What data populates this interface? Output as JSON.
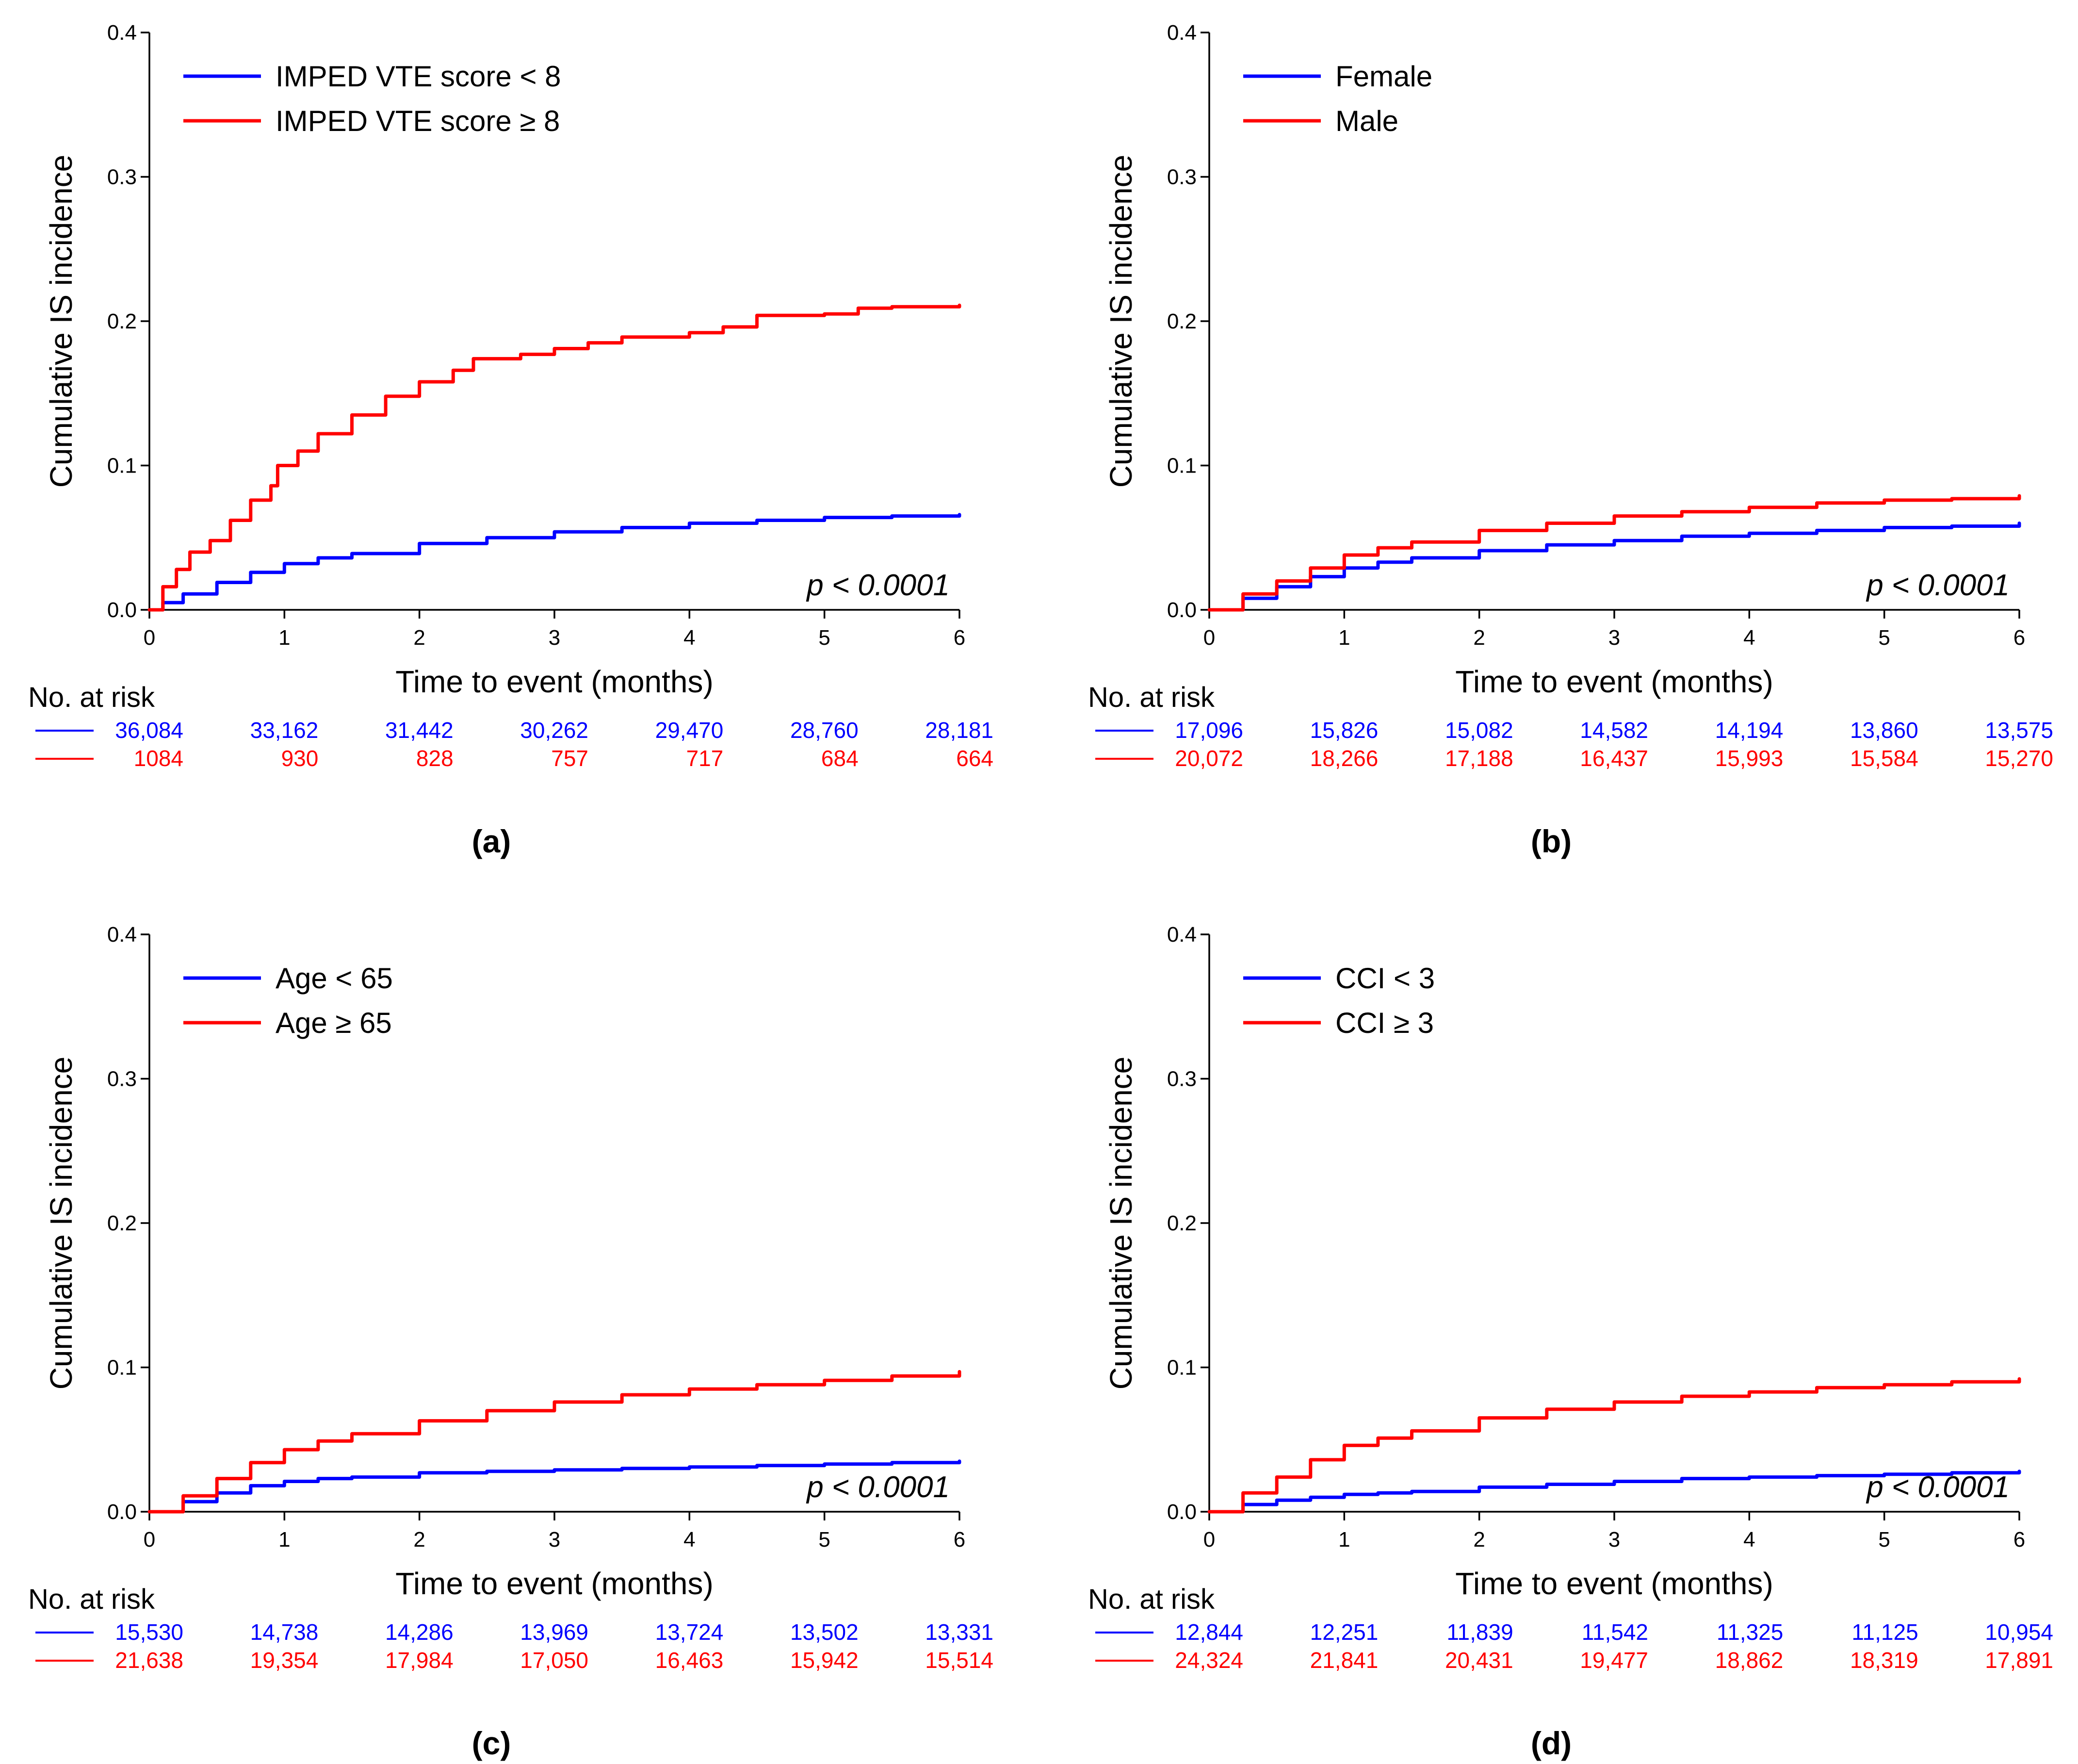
{
  "chart_data": [
    {
      "type": "line",
      "panel_label": "(a)",
      "xlabel": "Time to event (months)",
      "ylabel": "Cumulative IS incidence",
      "xlim": [
        0,
        6
      ],
      "ylim": [
        0,
        0.4
      ],
      "xticks": [
        "0",
        "1",
        "2",
        "3",
        "4",
        "5",
        "6"
      ],
      "yticks": [
        "0.0",
        "0.1",
        "0.2",
        "0.3",
        "0.4"
      ],
      "legend_position": "top-left",
      "annotation": "p < 0.0001",
      "risk_table_title": "No. at risk",
      "series": [
        {
          "name": "IMPED VTE score < 8",
          "color": "#0000ff",
          "x": [
            0,
            0.1,
            0.25,
            0.5,
            0.75,
            1,
            1.25,
            1.5,
            2,
            2.5,
            3,
            3.5,
            4,
            4.5,
            5,
            5.5,
            6
          ],
          "y": [
            0,
            0.005,
            0.011,
            0.019,
            0.026,
            0.032,
            0.036,
            0.039,
            0.046,
            0.05,
            0.054,
            0.057,
            0.06,
            0.062,
            0.064,
            0.065,
            0.066
          ],
          "at_risk": [
            "36,084",
            "33,162",
            "31,442",
            "30,262",
            "29,470",
            "28,760",
            "28,181"
          ]
        },
        {
          "name": "IMPED VTE score ≥ 8",
          "color": "#ff0000",
          "x": [
            0,
            0.1,
            0.2,
            0.3,
            0.45,
            0.6,
            0.75,
            0.9,
            0.95,
            1.1,
            1.25,
            1.5,
            1.75,
            2,
            2.25,
            2.4,
            2.75,
            3,
            3.25,
            3.5,
            4,
            4.25,
            4.5,
            4.75,
            5,
            5.25,
            5.5,
            6
          ],
          "y": [
            0,
            0.016,
            0.028,
            0.04,
            0.048,
            0.062,
            0.076,
            0.086,
            0.1,
            0.11,
            0.122,
            0.135,
            0.148,
            0.158,
            0.166,
            0.174,
            0.177,
            0.181,
            0.185,
            0.189,
            0.192,
            0.196,
            0.204,
            0.204,
            0.205,
            0.209,
            0.21,
            0.211
          ],
          "at_risk": [
            "1084",
            "930",
            "828",
            "757",
            "717",
            "684",
            "664"
          ]
        }
      ]
    },
    {
      "type": "line",
      "panel_label": "(b)",
      "xlabel": "Time to event (months)",
      "ylabel": "Cumulative IS incidence",
      "xlim": [
        0,
        6
      ],
      "ylim": [
        0,
        0.4
      ],
      "xticks": [
        "0",
        "1",
        "2",
        "3",
        "4",
        "5",
        "6"
      ],
      "yticks": [
        "0.0",
        "0.1",
        "0.2",
        "0.3",
        "0.4"
      ],
      "legend_position": "top-left",
      "annotation": "p < 0.0001",
      "risk_table_title": "No. at risk",
      "series": [
        {
          "name": "Female",
          "color": "#0000ff",
          "x": [
            0,
            0.25,
            0.5,
            0.75,
            1,
            1.25,
            1.5,
            2,
            2.5,
            3,
            3.5,
            4,
            4.5,
            5,
            5.5,
            6
          ],
          "y": [
            0,
            0.008,
            0.016,
            0.023,
            0.029,
            0.033,
            0.036,
            0.041,
            0.045,
            0.048,
            0.051,
            0.053,
            0.055,
            0.057,
            0.058,
            0.06
          ],
          "at_risk": [
            "17,096",
            "15,826",
            "15,082",
            "14,582",
            "14,194",
            "13,860",
            "13,575"
          ]
        },
        {
          "name": "Male",
          "color": "#ff0000",
          "x": [
            0,
            0.25,
            0.5,
            0.75,
            1,
            1.25,
            1.5,
            2,
            2.5,
            3,
            3.5,
            4,
            4.5,
            5,
            5.5,
            6
          ],
          "y": [
            0,
            0.011,
            0.02,
            0.029,
            0.038,
            0.043,
            0.047,
            0.055,
            0.06,
            0.065,
            0.068,
            0.071,
            0.074,
            0.076,
            0.077,
            0.079
          ],
          "at_risk": [
            "20,072",
            "18,266",
            "17,188",
            "16,437",
            "15,993",
            "15,584",
            "15,270"
          ]
        }
      ]
    },
    {
      "type": "line",
      "panel_label": "(c)",
      "xlabel": "Time to event (months)",
      "ylabel": "Cumulative IS incidence",
      "xlim": [
        0,
        6
      ],
      "ylim": [
        0,
        0.4
      ],
      "xticks": [
        "0",
        "1",
        "2",
        "3",
        "4",
        "5",
        "6"
      ],
      "yticks": [
        "0.0",
        "0.1",
        "0.2",
        "0.3",
        "0.4"
      ],
      "legend_position": "top-left",
      "annotation": "p < 0.0001",
      "risk_table_title": "No. at risk",
      "series": [
        {
          "name": "Age < 65",
          "color": "#0000ff",
          "x": [
            0,
            0.25,
            0.5,
            0.75,
            1,
            1.25,
            1.5,
            2,
            2.5,
            3,
            3.5,
            4,
            4.5,
            5,
            5.5,
            6
          ],
          "y": [
            0,
            0.007,
            0.013,
            0.018,
            0.021,
            0.023,
            0.024,
            0.027,
            0.028,
            0.029,
            0.03,
            0.031,
            0.032,
            0.033,
            0.034,
            0.035
          ],
          "at_risk": [
            "15,530",
            "14,738",
            "14,286",
            "13,969",
            "13,724",
            "13,502",
            "13,331"
          ]
        },
        {
          "name": "Age ≥ 65",
          "color": "#ff0000",
          "x": [
            0,
            0.25,
            0.5,
            0.75,
            1,
            1.25,
            1.5,
            2,
            2.5,
            3,
            3.5,
            4,
            4.5,
            5,
            5.5,
            6
          ],
          "y": [
            0,
            0.011,
            0.023,
            0.034,
            0.043,
            0.049,
            0.054,
            0.063,
            0.07,
            0.076,
            0.081,
            0.085,
            0.088,
            0.091,
            0.094,
            0.097
          ],
          "at_risk": [
            "21,638",
            "19,354",
            "17,984",
            "17,050",
            "16,463",
            "15,942",
            "15,514"
          ]
        }
      ]
    },
    {
      "type": "line",
      "panel_label": "(d)",
      "xlabel": "Time to event (months)",
      "ylabel": "Cumulative IS incidence",
      "xlim": [
        0,
        6
      ],
      "ylim": [
        0,
        0.4
      ],
      "xticks": [
        "0",
        "1",
        "2",
        "3",
        "4",
        "5",
        "6"
      ],
      "yticks": [
        "0.0",
        "0.1",
        "0.2",
        "0.3",
        "0.4"
      ],
      "legend_position": "top-left",
      "annotation": "p < 0.0001",
      "risk_table_title": "No. at risk",
      "series": [
        {
          "name": "CCI < 3",
          "color": "#0000ff",
          "x": [
            0,
            0.25,
            0.5,
            0.75,
            1,
            1.25,
            1.5,
            2,
            2.5,
            3,
            3.5,
            4,
            4.5,
            5,
            5.5,
            6
          ],
          "y": [
            0,
            0.005,
            0.008,
            0.01,
            0.012,
            0.013,
            0.014,
            0.017,
            0.019,
            0.021,
            0.023,
            0.024,
            0.025,
            0.026,
            0.027,
            0.028
          ],
          "at_risk": [
            "12,844",
            "12,251",
            "11,839",
            "11,542",
            "11,325",
            "11,125",
            "10,954"
          ]
        },
        {
          "name": "CCI ≥ 3",
          "color": "#ff0000",
          "x": [
            0,
            0.25,
            0.5,
            0.75,
            1,
            1.25,
            1.5,
            2,
            2.5,
            3,
            3.5,
            4,
            4.5,
            5,
            5.5,
            6
          ],
          "y": [
            0,
            0.013,
            0.024,
            0.036,
            0.046,
            0.051,
            0.056,
            0.065,
            0.071,
            0.076,
            0.08,
            0.083,
            0.086,
            0.088,
            0.09,
            0.092
          ],
          "at_risk": [
            "24,324",
            "21,841",
            "20,431",
            "19,477",
            "18,862",
            "18,319",
            "17,891"
          ]
        }
      ]
    }
  ]
}
